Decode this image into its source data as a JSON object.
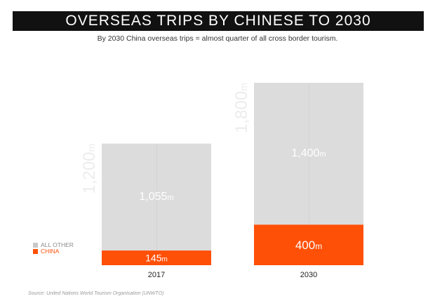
{
  "header": {
    "title": "OVERSEAS TRIPS BY CHINESE TO 2030",
    "subtitle": "By 2030 China overseas trips = almost quarter of all cross border tourism."
  },
  "source": "Source: United Nations World Tourism Organisation (UNWTO)",
  "chart_data": {
    "type": "bar",
    "stacked": true,
    "categories": [
      "2017",
      "2030"
    ],
    "series": [
      {
        "name": "CHINA",
        "values": [
          145,
          400
        ],
        "labels": [
          "145",
          "400"
        ],
        "color": "#ff5008"
      },
      {
        "name": "ALL OTHER",
        "values": [
          1055,
          1400
        ],
        "labels": [
          "1,055",
          "1,400"
        ],
        "color": "#dcdcdc"
      }
    ],
    "value_unit": "m",
    "totals": [
      {
        "value": 1200,
        "label": "1,200"
      },
      {
        "value": 1800,
        "label": "1,800"
      }
    ],
    "total_unit": "m",
    "legend": {
      "position": "bottom-left",
      "entries": [
        "ALL OTHER",
        "CHINA"
      ]
    },
    "grid": false
  }
}
